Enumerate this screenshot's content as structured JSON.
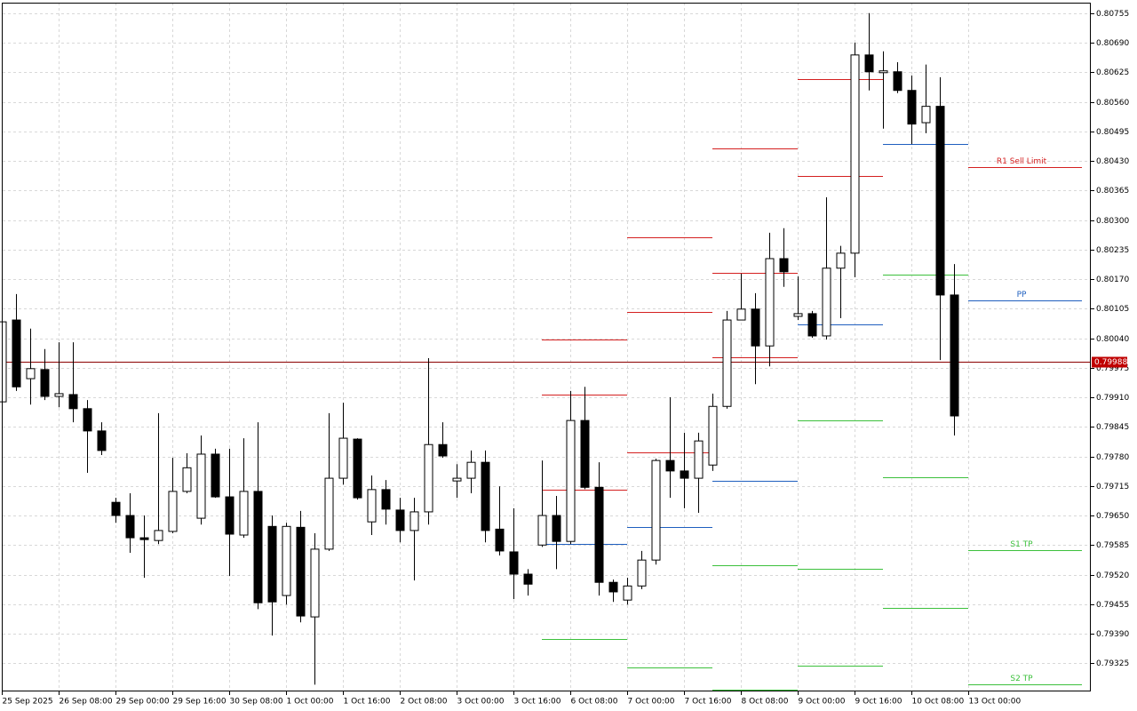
{
  "chart_data": {
    "type": "candlestick",
    "up_color": "#ffffff",
    "down_color": "#000000",
    "grid": true,
    "xlim": [
      -0.125,
      76.625
    ],
    "ylim": [
      0.79263,
      0.80778
    ],
    "xticks": [
      {
        "value": 0,
        "label": "25 Sep 2025"
      },
      {
        "value": 4,
        "label": "26 Sep 08:00"
      },
      {
        "value": 8,
        "label": "29 Sep 00:00"
      },
      {
        "value": 12,
        "label": "29 Sep 16:00"
      },
      {
        "value": 16,
        "label": "30 Sep 08:00"
      },
      {
        "value": 20,
        "label": "1 Oct 00:00"
      },
      {
        "value": 24,
        "label": "1 Oct 16:00"
      },
      {
        "value": 28,
        "label": "2 Oct 08:00"
      },
      {
        "value": 32,
        "label": "3 Oct 00:00"
      },
      {
        "value": 36,
        "label": "3 Oct 16:00"
      },
      {
        "value": 40,
        "label": "6 Oct 08:00"
      },
      {
        "value": 44,
        "label": "7 Oct 00:00"
      },
      {
        "value": 48,
        "label": "7 Oct 16:00"
      },
      {
        "value": 52,
        "label": "8 Oct 08:00"
      },
      {
        "value": 56,
        "label": "9 Oct 00:00"
      },
      {
        "value": 60,
        "label": "9 Oct 16:00"
      },
      {
        "value": 64,
        "label": "10 Oct 08:00"
      },
      {
        "value": 68,
        "label": "13 Oct 00:00"
      }
    ],
    "yticks": [
      0.80755,
      {
        "value": 0.8069,
        "label": "0.80690"
      },
      0.80625,
      {
        "value": 0.8056,
        "label": "0.80560"
      },
      0.80495,
      {
        "value": 0.8043,
        "label": "0.80430"
      },
      0.80365,
      {
        "value": 0.803,
        "label": "0.80300"
      },
      0.80235,
      {
        "value": 0.8017,
        "label": "0.80170"
      },
      0.80105,
      {
        "value": 0.8004,
        "label": "0.80040"
      },
      0.79975,
      {
        "value": 0.7991,
        "label": "0.79910"
      },
      0.79845,
      {
        "value": 0.7978,
        "label": "0.79780"
      },
      0.79715,
      {
        "value": 0.7965,
        "label": "0.79650"
      },
      0.79585,
      {
        "value": 0.7952,
        "label": "0.79520"
      },
      0.79455,
      {
        "value": 0.7939,
        "label": "0.79390"
      },
      0.79325
    ],
    "open": [
      0.799,
      0.8008,
      0.79951,
      0.79971,
      0.79912,
      0.79916,
      0.79885,
      0.79836,
      0.79679,
      0.7965,
      0.79601,
      0.79595,
      0.79615,
      0.79703,
      0.79644,
      0.79785,
      0.79691,
      0.79607,
      0.79703,
      0.79626,
      0.79474,
      0.79624,
      0.79427,
      0.79576,
      0.79732,
      0.79818,
      0.79636,
      0.79707,
      0.79662,
      0.79617,
      0.79658,
      0.79806,
      0.79726,
      0.79732,
      0.79767,
      0.7962,
      0.7957,
      0.79521,
      0.79585,
      0.7965,
      0.79593,
      0.79859,
      0.79712,
      0.79503,
      0.79464,
      0.79495,
      0.79552,
      0.79771,
      0.79748,
      0.79732,
      0.79761,
      0.7989,
      0.8008,
      0.80104,
      0.80023,
      0.80215,
      0.80088,
      0.80094,
      0.80045,
      0.80194,
      0.80227,
      0.80663,
      0.80624,
      0.80626,
      0.80585,
      0.80514,
      0.8055,
      0.80135
    ],
    "high": [
      0.8008,
      0.80137,
      0.80061,
      0.80016,
      0.80031,
      0.80031,
      0.79904,
      0.79855,
      0.79689,
      0.79699,
      0.7965,
      0.79875,
      0.79777,
      0.79787,
      0.79826,
      0.79797,
      0.79797,
      0.7982,
      0.79855,
      0.7965,
      0.79634,
      0.7966,
      0.79611,
      0.79875,
      0.79898,
      0.7982,
      0.79738,
      0.79728,
      0.79689,
      0.79689,
      0.79996,
      0.79855,
      0.79763,
      0.79793,
      0.79793,
      0.79714,
      0.79666,
      0.79532,
      0.79771,
      0.79693,
      0.79924,
      0.79933,
      0.79767,
      0.79509,
      0.79513,
      0.79572,
      0.79775,
      0.7991,
      0.79832,
      0.79832,
      0.79918,
      0.801,
      0.80182,
      0.80139,
      0.80272,
      0.80282,
      0.80176,
      0.801,
      0.8035,
      0.80243,
      0.8069,
      0.80755,
      0.80671,
      0.80647,
      0.80618,
      0.80642,
      0.80614,
      0.80203
    ],
    "low": [
      0.79898,
      0.79924,
      0.79894,
      0.79904,
      0.79888,
      0.79855,
      0.79744,
      0.79783,
      0.79634,
      0.79568,
      0.79513,
      0.79587,
      0.79611,
      0.79699,
      0.7963,
      0.79689,
      0.79517,
      0.79601,
      0.79444,
      0.79386,
      0.79454,
      0.79415,
      0.79278,
      0.79572,
      0.79718,
      0.79685,
      0.79607,
      0.7963,
      0.79591,
      0.79507,
      0.7963,
      0.79777,
      0.79689,
      0.79699,
      0.79591,
      0.79562,
      0.79466,
      0.79474,
      0.79581,
      0.79532,
      0.79587,
      0.79708,
      0.79474,
      0.7946,
      0.79454,
      0.79488,
      0.79542,
      0.79689,
      0.79666,
      0.79656,
      0.79748,
      0.79885,
      0.8008,
      0.79939,
      0.79978,
      0.80153,
      0.8008,
      0.80041,
      0.80037,
      0.80084,
      0.80174,
      0.80585,
      0.80501,
      0.80579,
      0.80467,
      0.80491,
      0.79992,
      0.79826
    ],
    "close": [
      0.80076,
      0.79933,
      0.79973,
      0.79912,
      0.79918,
      0.79885,
      0.79836,
      0.79793,
      0.7965,
      0.79601,
      0.79597,
      0.79617,
      0.79703,
      0.79755,
      0.79785,
      0.79691,
      0.79609,
      0.79703,
      0.79458,
      0.7946,
      0.79626,
      0.79429,
      0.79576,
      0.79732,
      0.7982,
      0.79689,
      0.79707,
      0.79664,
      0.79617,
      0.79658,
      0.79806,
      0.79781,
      0.79732,
      0.79767,
      0.79617,
      0.79572,
      0.79521,
      0.79499,
      0.7965,
      0.79593,
      0.79859,
      0.79712,
      0.79503,
      0.79482,
      0.79495,
      0.79552,
      0.79771,
      0.79748,
      0.79732,
      0.79814,
      0.7989,
      0.8008,
      0.80104,
      0.80023,
      0.80215,
      0.80186,
      0.80094,
      0.80045,
      0.80194,
      0.80227,
      0.80663,
      0.80626,
      0.80628,
      0.80585,
      0.80511,
      0.8055,
      0.80135,
      0.79869
    ],
    "current_price": {
      "value": 0.79988,
      "color": "#8b0000"
    },
    "levels": [
      {
        "start": 38,
        "end": 44,
        "value": 0.80037,
        "color": "#d42020"
      },
      {
        "start": 38,
        "end": 44,
        "value": 0.79916,
        "color": "#d42020"
      },
      {
        "start": 38,
        "end": 44,
        "value": 0.79707,
        "color": "#d42020"
      },
      {
        "start": 38,
        "end": 44,
        "value": 0.79587,
        "color": "#1f5fbf"
      },
      {
        "start": 38,
        "end": 44,
        "value": 0.79378,
        "color": "#3cc03c"
      },
      {
        "start": 44,
        "end": 50,
        "value": 0.80262,
        "color": "#d42020"
      },
      {
        "start": 44,
        "end": 50,
        "value": 0.80098,
        "color": "#d42020"
      },
      {
        "start": 44,
        "end": 50,
        "value": 0.79789,
        "color": "#d42020"
      },
      {
        "start": 44,
        "end": 50,
        "value": 0.79624,
        "color": "#1f5fbf"
      },
      {
        "start": 44,
        "end": 50,
        "value": 0.79315,
        "color": "#3cc03c"
      },
      {
        "start": 50,
        "end": 56,
        "value": 0.80458,
        "color": "#d42020"
      },
      {
        "start": 50,
        "end": 56,
        "value": 0.80184,
        "color": "#d42020"
      },
      {
        "start": 50,
        "end": 56,
        "value": 0.79998,
        "color": "#d42020"
      },
      {
        "start": 50,
        "end": 56,
        "value": 0.79726,
        "color": "#1f5fbf"
      },
      {
        "start": 50,
        "end": 56,
        "value": 0.7954,
        "color": "#3cc03c"
      },
      {
        "start": 50,
        "end": 56,
        "value": 0.79266,
        "color": "#3cc03c"
      },
      {
        "start": 56,
        "end": 62,
        "value": 0.8061,
        "color": "#d42020"
      },
      {
        "start": 56,
        "end": 62,
        "value": 0.80397,
        "color": "#d42020"
      },
      {
        "start": 56,
        "end": 62,
        "value": 0.8007,
        "color": "#1f5fbf"
      },
      {
        "start": 56,
        "end": 62,
        "value": 0.79859,
        "color": "#3cc03c"
      },
      {
        "start": 56,
        "end": 62,
        "value": 0.79532,
        "color": "#3cc03c"
      },
      {
        "start": 56,
        "end": 62,
        "value": 0.79319,
        "color": "#3cc03c"
      },
      {
        "start": 62,
        "end": 68,
        "value": 0.80467,
        "color": "#1f5fbf"
      },
      {
        "start": 62,
        "end": 68,
        "value": 0.8018,
        "color": "#3cc03c"
      },
      {
        "start": 62,
        "end": 68,
        "value": 0.79734,
        "color": "#3cc03c"
      },
      {
        "start": 62,
        "end": 68,
        "value": 0.79446,
        "color": "#3cc03c"
      },
      {
        "start": 68,
        "end": 76,
        "value": 0.80417,
        "color": "#d42020",
        "label": "R1 Sell Limit"
      },
      {
        "start": 68,
        "end": 76,
        "value": 0.80123,
        "color": "#1f5fbf",
        "label": "PP"
      },
      {
        "start": 68,
        "end": 76,
        "value": 0.79574,
        "color": "#3cc03c",
        "label": "S1 TP"
      },
      {
        "start": 68,
        "end": 76,
        "value": 0.79278,
        "color": "#3cc03c",
        "label": "S2 TP"
      }
    ]
  }
}
